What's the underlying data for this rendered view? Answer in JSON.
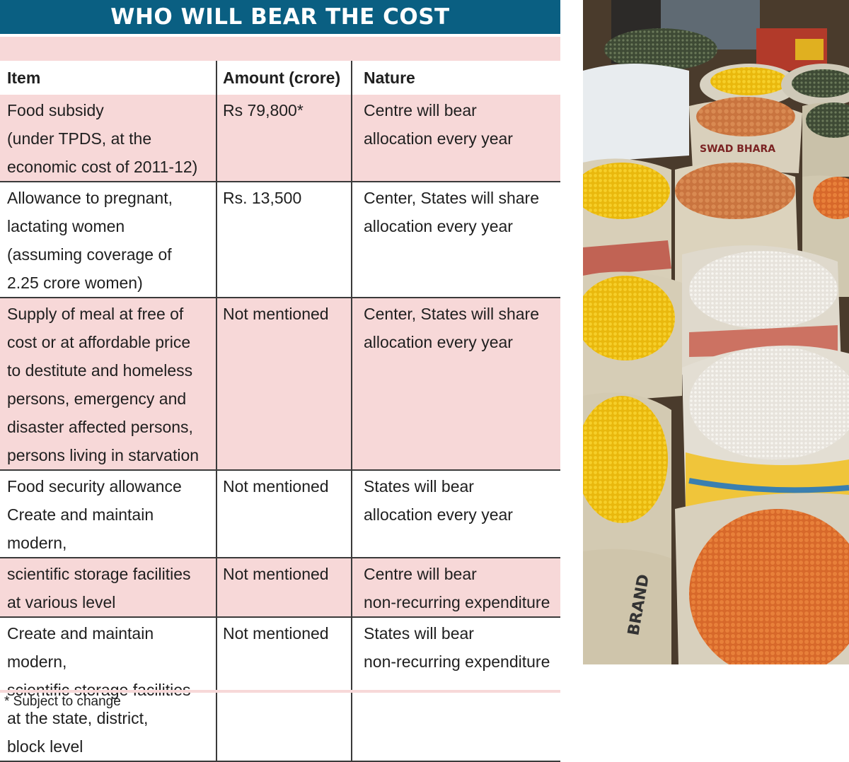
{
  "banner": {
    "title": "WHO WILL BEAR THE COST"
  },
  "table": {
    "headers": [
      "Item",
      "Amount (crore)",
      "Nature"
    ],
    "rows": [
      {
        "item": [
          "Food subsidy",
          "(under TPDS, at the",
          "economic cost of 2011-12)"
        ],
        "amount": [
          "Rs 79,800*"
        ],
        "nature": [
          "Centre will bear",
          "allocation every year"
        ]
      },
      {
        "item": [
          "Allowance to pregnant,",
          "lactating women",
          "(assuming coverage of",
          "2.25 crore women)"
        ],
        "amount": [
          "Rs. 13,500"
        ],
        "nature": [
          "Center, States will share",
          "allocation every year"
        ]
      },
      {
        "item": [
          "Supply of meal at free of",
          "cost or at affordable price",
          "to destitute and homeless",
          "persons, emergency and",
          "disaster affected persons,",
          "persons living in starvation"
        ],
        "amount": [
          "Not mentioned"
        ],
        "nature": [
          "Center, States will share",
          "allocation every year"
        ]
      },
      {
        "item": [
          "Food security allowance",
          "Create and maintain modern,"
        ],
        "amount": [
          "Not mentioned"
        ],
        "nature": [
          "States will bear",
          "allocation every year"
        ]
      },
      {
        "item": [
          "scientific storage facilities",
          "at various level"
        ],
        "amount": [
          "Not mentioned"
        ],
        "nature": [
          "Centre will bear",
          "non-recurring expenditure"
        ]
      },
      {
        "item": [
          "Create and maintain modern,",
          "scientific storage facilities",
          "at the state, district,",
          "block level"
        ],
        "amount": [
          "Not mentioned"
        ],
        "nature": [
          "States will bear",
          "non-recurring expenditure"
        ]
      }
    ]
  },
  "footnote": "* Subject to change",
  "photo": {
    "sack_print_1": "SWAD BHARA",
    "sack_print_2": "BRAND"
  },
  "colors": {
    "banner": "#0a5f82",
    "pink": "#f7d8d8",
    "rule": "#3a3a3a"
  }
}
